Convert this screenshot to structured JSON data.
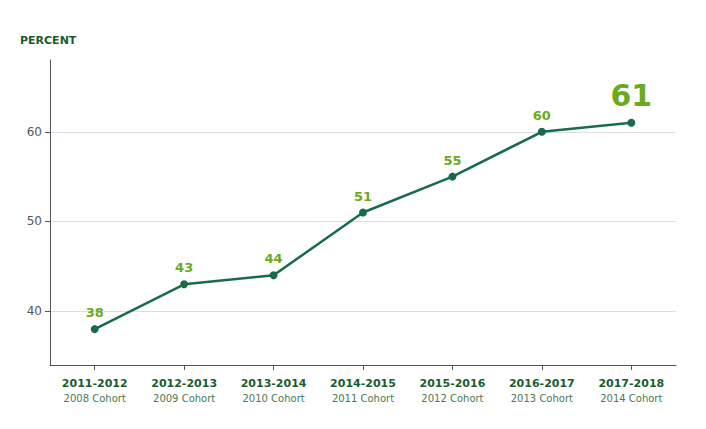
{
  "chart_data": {
    "type": "line",
    "y_label": "PERCENT",
    "categories": [
      "2011-2012\n2008 Cohort",
      "2012-2013\n2009 Cohort",
      "2013-2014\n2010 Cohort",
      "2014-2015\n2011 Cohort",
      "2015-2016\n2012 Cohort",
      "2016-2017\n2013 Cohort",
      "2017-2018\n2014 Cohort"
    ],
    "values": [
      38,
      43,
      44,
      51,
      55,
      60,
      61
    ],
    "color": "#1a6b4a",
    "marker": "circle",
    "ylim": [
      34,
      68
    ],
    "yticks": [
      40,
      50,
      60
    ],
    "grid": true,
    "data_labels": true
  }
}
